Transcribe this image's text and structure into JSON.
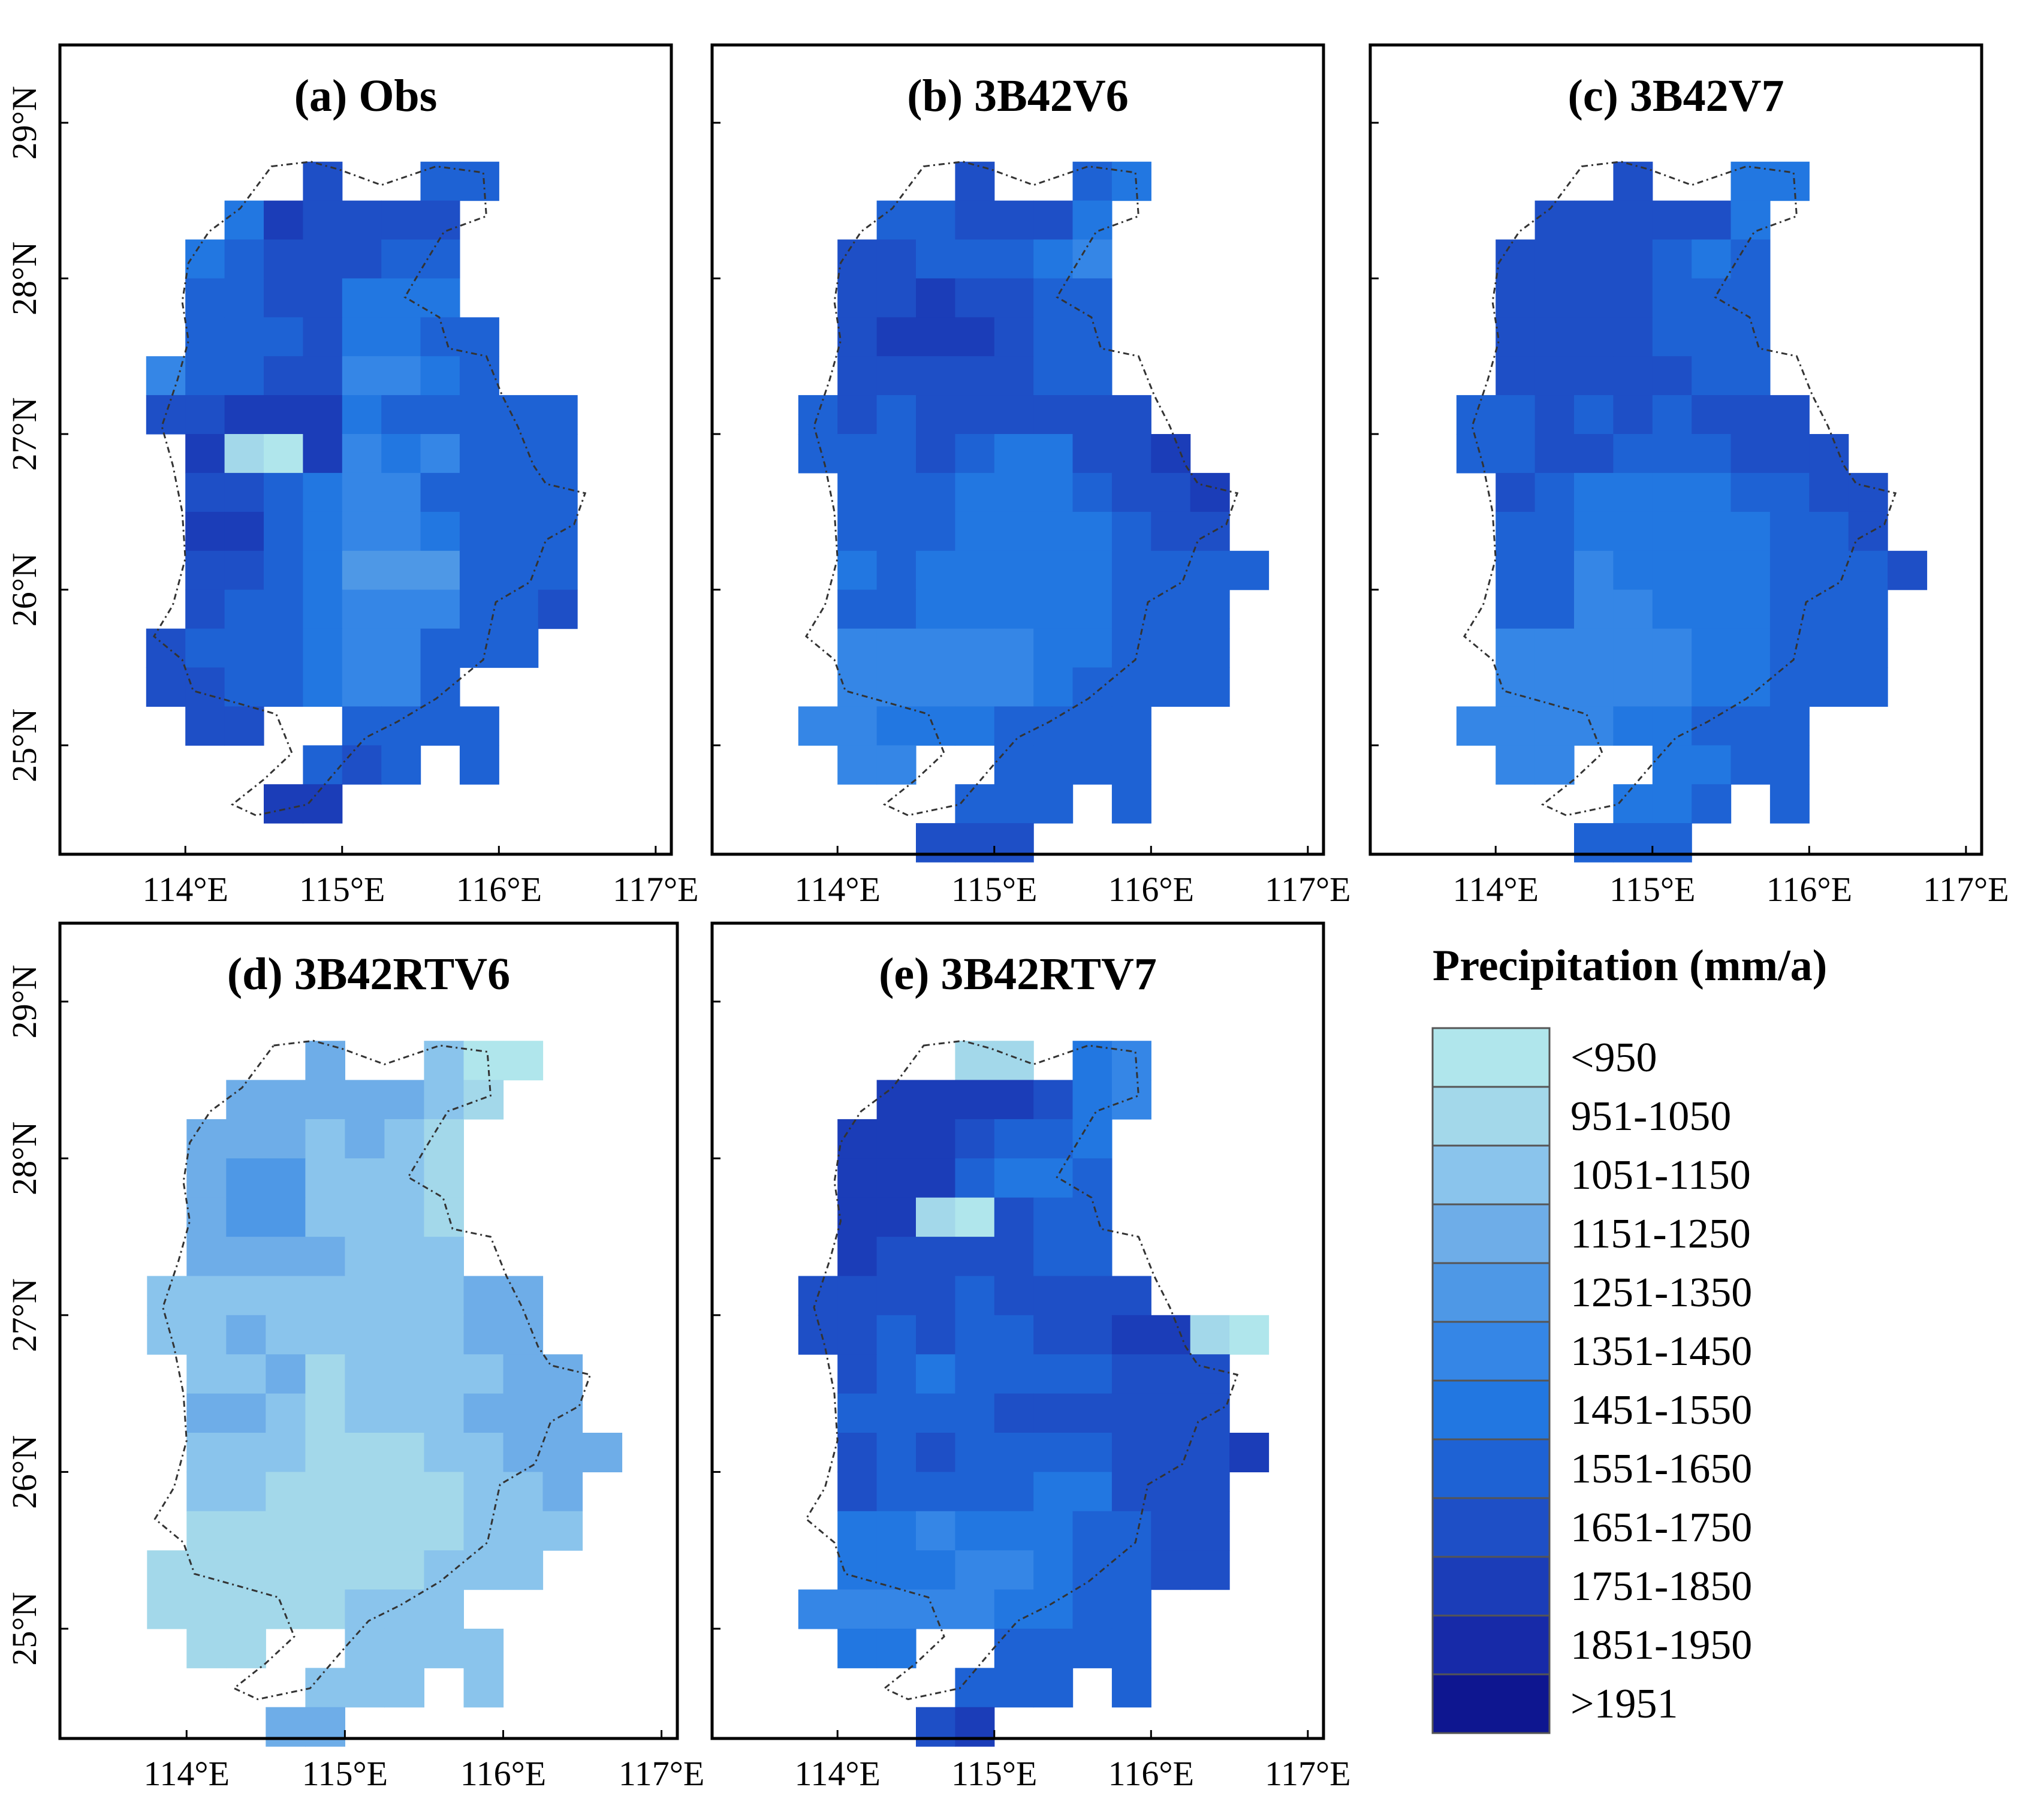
{
  "figure": {
    "legend": {
      "title": "Precipitation (mm/a)",
      "classes": [
        {
          "label": "<950",
          "color": "#B0E6EC"
        },
        {
          "label": "951-1050",
          "color": "#A3D8EA"
        },
        {
          "label": "1051-1150",
          "color": "#8AC4EC"
        },
        {
          "label": "1151-1250",
          "color": "#6EADE8"
        },
        {
          "label": "1251-1350",
          "color": "#4E98E6"
        },
        {
          "label": "1351-1450",
          "color": "#3586E6"
        },
        {
          "label": "1451-1550",
          "color": "#2277E1"
        },
        {
          "label": "1551-1650",
          "color": "#1E62D4"
        },
        {
          "label": "1651-1750",
          "color": "#1E4FC6"
        },
        {
          "label": "1751-1850",
          "color": "#1B3DB8"
        },
        {
          "label": "1851-1950",
          "color": "#172AA8"
        },
        {
          "label": ">1951",
          "color": "#0E1690"
        }
      ]
    }
  },
  "chart_data": [
    {
      "type": "heatmap",
      "title": "(a) Obs",
      "x_ticks": [
        "114°E",
        "115°E",
        "116°E",
        "117°E"
      ],
      "y_ticks": [
        "25°N",
        "26°N",
        "27°N",
        "28°N",
        "29°N"
      ],
      "xlim": [
        113.2,
        117.1
      ],
      "ylim": [
        24.3,
        29.5
      ],
      "grid": {
        "lon0": 113.75,
        "lat_top": 28.75,
        "cell_deg": 0.25
      },
      "class_index_rows": [
        "....8..77...",
        "..698888....",
        ".6788877....",
        ".7788666....",
        ".77786677...",
        "577885567...",
        "88999677777.",
        ".9109565777.",
        ".8876557777.",
        ".9976556777.",
        ".8876444777.",
        ".8776555778.",
        "8777655777..",
        "88776557....",
        ".88..7777...",
        "....787.7...",
        "...99......."
      ]
    },
    {
      "type": "heatmap",
      "title": "(b) 3B42V6",
      "x_ticks": [
        "114°E",
        "115°E",
        "116°E",
        "117°E"
      ],
      "y_ticks": [
        "25°N",
        "26°N",
        "27°N",
        "28°N",
        "29°N"
      ],
      "xlim": [
        113.2,
        117.1
      ],
      "ylim": [
        24.3,
        29.5
      ],
      "grid": {
        "lon0": 113.75,
        "lat_top": 28.75,
        "cell_deg": 0.25
      },
      "class_index_rows": [
        "....8..76...",
        "..778886....",
        ".8877765....",
        ".8898877....",
        ".8999877....",
        ".8888877....",
        "787888888...",
        "7778766889..",
        ".7776667889.",
        ".7776666788.",
        ".67666667777",
        ".7766666777.",
        ".5555566777.",
        ".5555567777.",
        "556667777...",
        ".55..7777...",
        "....777.7...",
        "...888......."
      ]
    },
    {
      "type": "heatmap",
      "title": "(c) 3B42V7",
      "x_ticks": [
        "114°E",
        "115°E",
        "116°E",
        "117°E"
      ],
      "y_ticks": [
        "25°N",
        "26°N",
        "27°N",
        "28°N",
        "29°N"
      ],
      "xlim": [
        113.2,
        117.1
      ],
      "ylim": [
        24.3,
        29.5
      ],
      "grid": {
        "lon0": 113.75,
        "lat_top": 28.75,
        "cell_deg": 0.25
      },
      "class_index_rows": [
        "....8..66...",
        "..888886....",
        ".8888767....",
        ".8888777....",
        ".8888777....",
        ".8888877....",
        "778787888...",
        "7788777888..",
        ".8766667788.",
        ".7766666778.",
        ".77566667778",
        ".7755666777.",
        ".5555566777.",
        ".5555566777.",
        "555566777...",
        ".55..6677...",
        "....667.7...",
        "...777......."
      ]
    },
    {
      "type": "heatmap",
      "title": "(d) 3B42RTV6",
      "x_ticks": [
        "114°E",
        "115°E",
        "116°E",
        "117°E"
      ],
      "y_ticks": [
        "25°N",
        "26°N",
        "27°N",
        "28°N",
        "29°N"
      ],
      "xlim": [
        113.2,
        117.1
      ],
      "ylim": [
        24.3,
        29.5
      ],
      "grid": {
        "lon0": 113.75,
        "lat_top": 28.75,
        "cell_deg": 0.25
      },
      "class_index_rows": [
        "....3..200..",
        "..3333321...",
        ".3332321....",
        ".3442221....",
        ".3442221....",
        ".3333222....",
        "2222222233..",
        "2232222233..",
        ".2231222233.",
        ".3321222333.",
        ".22211122333",
        ".2211111223.",
        ".1111111222.",
        "1111111222..",
        "11111222....",
        ".11..2222...",
        "....222.2...",
        "...33......."
      ]
    },
    {
      "type": "heatmap",
      "title": "(e) 3B42RTV7",
      "x_ticks": [
        "114°E",
        "115°E",
        "116°E",
        "117°E"
      ],
      "y_ticks": [
        "25°N",
        "26°N",
        "27°N",
        "28°N",
        "29°N"
      ],
      "xlim": [
        113.2,
        117.1
      ],
      "ylim": [
        24.3,
        29.5
      ],
      "grid": {
        "lon0": 113.75,
        "lat_top": 28.75,
        "cell_deg": 0.25
      },
      "class_index_rows": [
        "....11.65...",
        "..9999865...",
        ".9998776....",
        ".9997667....",
        ".9910877....",
        ".9888877....",
        "888878888...",
        "887877889910",
        ".8767777888.",
        ".7777888888.",
        ".87877778889",
        ".8777766888.",
        ".6656667788.",
        ".6665567788.",
        "555556677...",
        ".66..7777...",
        "....777.7...",
        "...89......."
      ]
    }
  ]
}
